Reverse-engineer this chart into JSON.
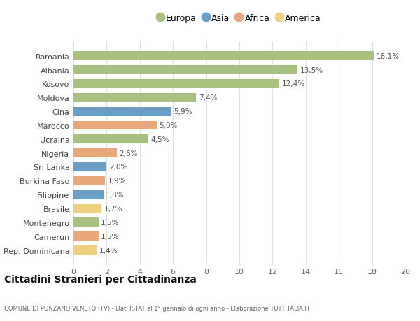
{
  "countries": [
    "Romania",
    "Albania",
    "Kosovo",
    "Moldova",
    "Cina",
    "Marocco",
    "Ucraina",
    "Nigeria",
    "Sri Lanka",
    "Burkina Faso",
    "Filippine",
    "Brasile",
    "Montenegro",
    "Camerun",
    "Rep. Dominicana"
  ],
  "values": [
    18.1,
    13.5,
    12.4,
    7.4,
    5.9,
    5.0,
    4.5,
    2.6,
    2.0,
    1.9,
    1.8,
    1.7,
    1.5,
    1.5,
    1.4
  ],
  "labels": [
    "18,1%",
    "13,5%",
    "12,4%",
    "7,4%",
    "5,9%",
    "5,0%",
    "4,5%",
    "2,6%",
    "2,0%",
    "1,9%",
    "1,8%",
    "1,7%",
    "1,5%",
    "1,5%",
    "1,4%"
  ],
  "continents": [
    "Europa",
    "Europa",
    "Europa",
    "Europa",
    "Asia",
    "Africa",
    "Europa",
    "Africa",
    "Asia",
    "Africa",
    "Asia",
    "America",
    "Europa",
    "Africa",
    "America"
  ],
  "colors": {
    "Europa": "#a8c080",
    "Asia": "#6a9ec5",
    "Africa": "#e8a87c",
    "America": "#f0d080"
  },
  "legend_order": [
    "Europa",
    "Asia",
    "Africa",
    "America"
  ],
  "xlim": [
    0,
    20
  ],
  "xticks": [
    0,
    2,
    4,
    6,
    8,
    10,
    12,
    14,
    16,
    18,
    20
  ],
  "title": "Cittadini Stranieri per Cittadinanza",
  "subtitle": "COMUNE DI PONZANO VENETO (TV) - Dati ISTAT al 1° gennaio di ogni anno - Elaborazione TUTTITALIA.IT",
  "background_color": "#ffffff",
  "grid_color": "#e0e0e0"
}
